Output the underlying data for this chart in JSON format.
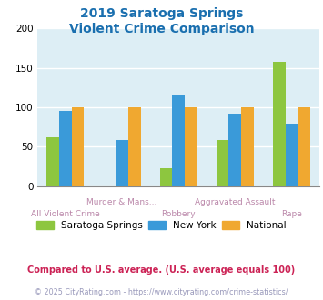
{
  "title_line1": "2019 Saratoga Springs",
  "title_line2": "Violent Crime Comparison",
  "title_color": "#1a6faf",
  "categories_row1": [
    "",
    "Murder & Mans...",
    "",
    "Aggravated Assault",
    ""
  ],
  "categories_row2": [
    "All Violent Crime",
    "",
    "Robbery",
    "",
    "Rape"
  ],
  "series": {
    "Saratoga Springs": [
      62,
      0,
      23,
      58,
      158
    ],
    "New York": [
      95,
      58,
      115,
      92,
      79
    ],
    "National": [
      100,
      100,
      100,
      100,
      100
    ]
  },
  "colors": {
    "Saratoga Springs": "#8dc63f",
    "New York": "#3a9ad9",
    "National": "#f0a830"
  },
  "ylim": [
    0,
    200
  ],
  "yticks": [
    0,
    50,
    100,
    150,
    200
  ],
  "plot_bg": "#ddeef5",
  "grid_color": "#ffffff",
  "xlabel_color_row1": "#bb88aa",
  "xlabel_color_row2": "#bb88aa",
  "footer_text": "Compared to U.S. average. (U.S. average equals 100)",
  "footer_color": "#cc2255",
  "copyright_text": "© 2025 CityRating.com - https://www.cityrating.com/crime-statistics/",
  "copyright_color": "#9999bb",
  "legend_entries": [
    "Saratoga Springs",
    "New York",
    "National"
  ],
  "bar_width": 0.22
}
